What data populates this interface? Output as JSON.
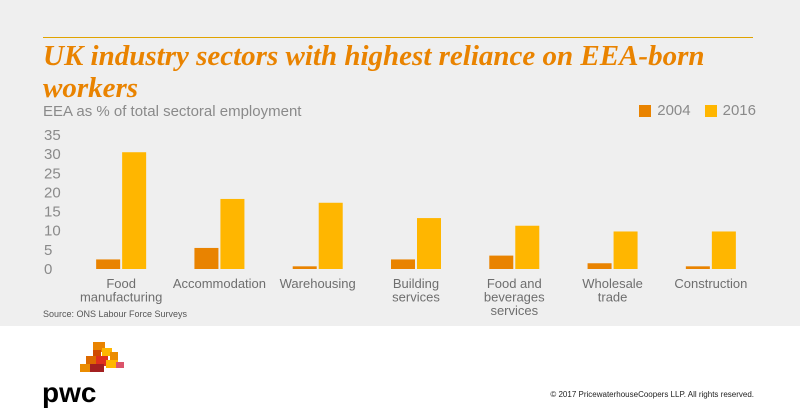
{
  "title": "UK industry sectors with highest reliance on EEA-born workers",
  "subtitle": "EEA as % of total sectoral employment",
  "source": "Source: ONS Labour Force Surveys",
  "copyright": "© 2017 PricewaterhouseCoopers LLP. All rights reserved.",
  "logo_text": "pwc",
  "colors": {
    "accent": "#e98300",
    "series_2004": "#e98300",
    "series_2016": "#ffb600",
    "panel": "#efefef"
  },
  "legend": [
    {
      "label": "2004"
    },
    {
      "label": "2016"
    }
  ],
  "chart_data": {
    "type": "bar",
    "categories": [
      [
        "Food",
        "manufacturing"
      ],
      [
        "Accommodation"
      ],
      [
        "Warehousing"
      ],
      [
        "Building",
        "services"
      ],
      [
        "Food and",
        "beverages",
        "services"
      ],
      [
        "Wholesale",
        "trade"
      ],
      [
        "Construction"
      ]
    ],
    "series": [
      {
        "name": "2004",
        "color": "#e98300",
        "values": [
          2.5,
          5.5,
          0.7,
          2.5,
          3.5,
          1.5,
          0.7
        ]
      },
      {
        "name": "2016",
        "color": "#ffb600",
        "values": [
          30.5,
          18.3,
          17.3,
          13.3,
          11.3,
          9.8,
          9.8
        ]
      }
    ],
    "ylim": [
      0,
      35
    ],
    "yticks": [
      0,
      5,
      10,
      15,
      20,
      25,
      30,
      35
    ],
    "ylabel": "EEA as % of total sectoral employment",
    "legend_position": "top-right",
    "grid": false
  }
}
